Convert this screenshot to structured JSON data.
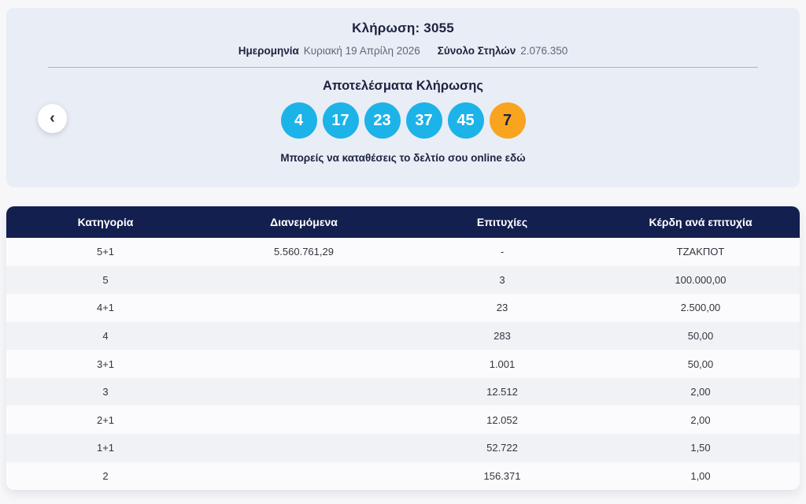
{
  "draw": {
    "title": "Κλήρωση: 3055",
    "date_label": "Ημερομηνία",
    "date_value": "Κυριακή 19 Απρίλη 2026",
    "columns_label": "Σύνολο Στηλών",
    "columns_value": "2.076.350",
    "results_title": "Αποτελέσματα Κλήρωσης",
    "numbers": [
      "4",
      "17",
      "23",
      "37",
      "45"
    ],
    "bonus_number": "7",
    "link_text": "Μπορείς να καταθέσεις το δελτίο σου online εδώ"
  },
  "nav": {
    "prev_icon": "‹"
  },
  "table": {
    "headers": [
      "Κατηγορία",
      "Διανεμόμενα",
      "Επιτυχίες",
      "Κέρδη ανά επιτυχία"
    ],
    "rows": [
      [
        "5+1",
        "5.560.761,29",
        "-",
        "ΤΖΑΚΠΟΤ"
      ],
      [
        "5",
        "",
        "3",
        "100.000,00"
      ],
      [
        "4+1",
        "",
        "23",
        "2.500,00"
      ],
      [
        "4",
        "",
        "283",
        "50,00"
      ],
      [
        "3+1",
        "",
        "1.001",
        "50,00"
      ],
      [
        "3",
        "",
        "12.512",
        "2,00"
      ],
      [
        "2+1",
        "",
        "12.052",
        "2,00"
      ],
      [
        "1+1",
        "",
        "52.722",
        "1,50"
      ],
      [
        "2",
        "",
        "156.371",
        "1,00"
      ]
    ]
  },
  "colors": {
    "ball": "#1cb3e8",
    "bonus_ball": "#f8a41f",
    "table_header_bg": "#131f4e",
    "card_bg": "#e9edf5",
    "page_bg": "#f7f7fa"
  }
}
